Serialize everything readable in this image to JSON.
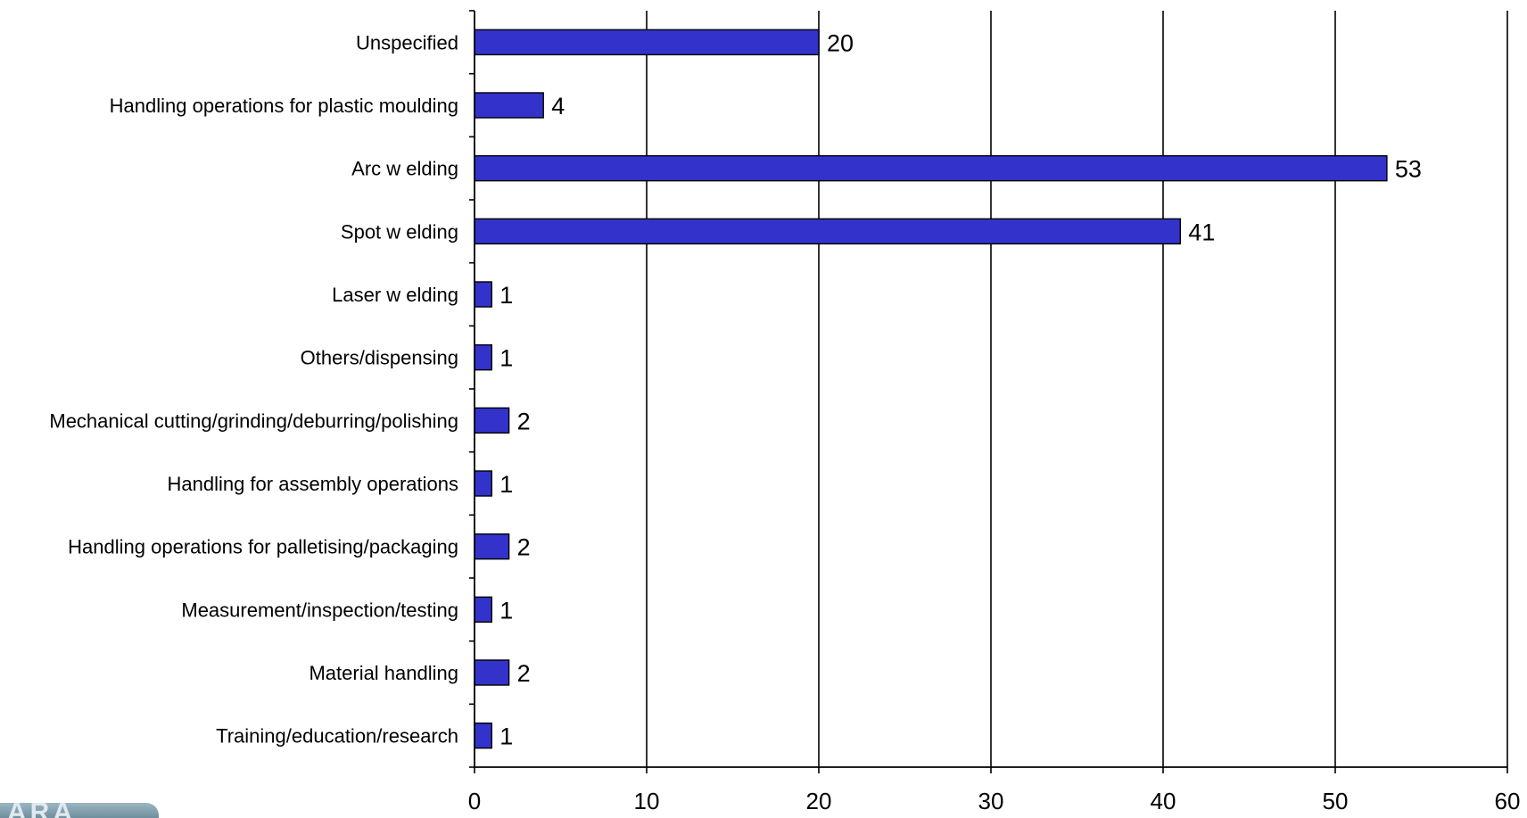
{
  "chart_data": {
    "type": "bar",
    "orientation": "horizontal",
    "categories": [
      "Unspecified",
      "Handling operations for plastic moulding",
      "Arc w elding",
      "Spot w elding",
      "Laser w elding",
      "Others/dispensing",
      "Mechanical cutting/grinding/deburring/polishing",
      "Handling for assembly operations",
      "Handling operations for palletising/packaging",
      "Measurement/inspection/testing",
      "Material handling",
      "Training/education/research"
    ],
    "values": [
      20,
      4,
      53,
      41,
      1,
      1,
      2,
      1,
      2,
      1,
      2,
      1
    ],
    "xlim": [
      0,
      60
    ],
    "xticks": [
      "0",
      "10",
      "20",
      "30",
      "40",
      "50",
      "60"
    ],
    "grid": "vertical",
    "bar_color": "#3333cc",
    "data_labels": true
  },
  "logo": {
    "name": "logo-mark"
  }
}
